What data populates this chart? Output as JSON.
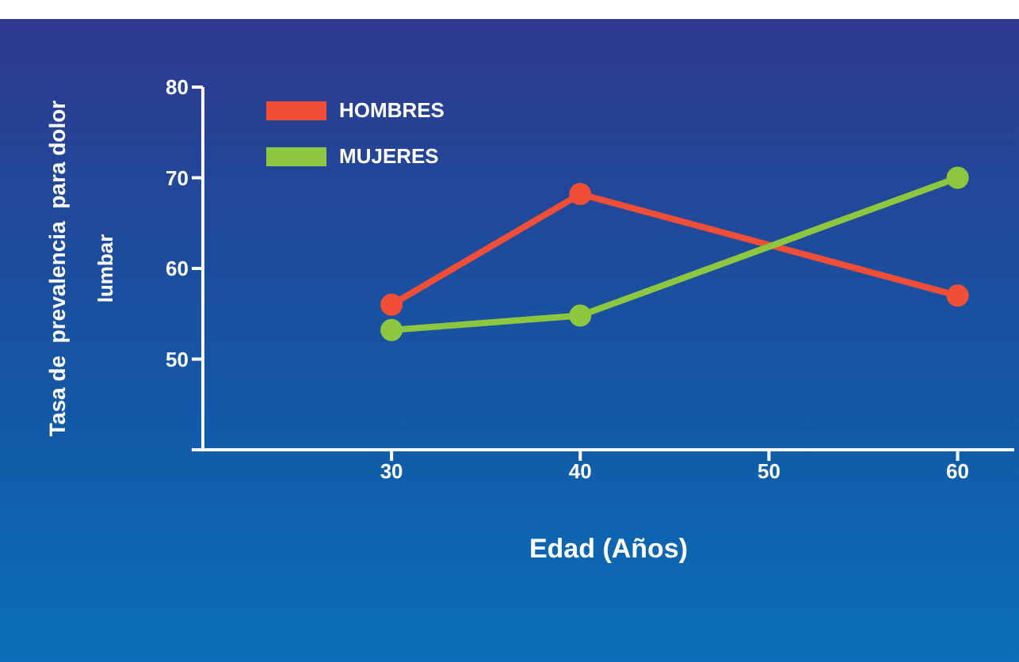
{
  "chart_data": {
    "type": "line",
    "xlabel": "Edad (Años)",
    "ylabel": "Tasa de  prevalencia  para dolor lumbar",
    "x": [
      30,
      40,
      60
    ],
    "series": [
      {
        "name": "HOMBRES",
        "color": "#f04e37",
        "values": [
          56,
          68.2,
          57
        ]
      },
      {
        "name": "MUJERES",
        "color": "#8dc63f",
        "values": [
          53.2,
          54.8,
          70
        ]
      }
    ],
    "xlim": [
      20,
      63
    ],
    "xticks": [
      30,
      40,
      50,
      60
    ],
    "ylim": [
      40,
      80
    ],
    "yticks": [
      {
        "value": 40,
        "label": null
      },
      50,
      60,
      70,
      80
    ],
    "grid": false,
    "legend": "top left",
    "marker": "circle",
    "line_style": "solid"
  }
}
